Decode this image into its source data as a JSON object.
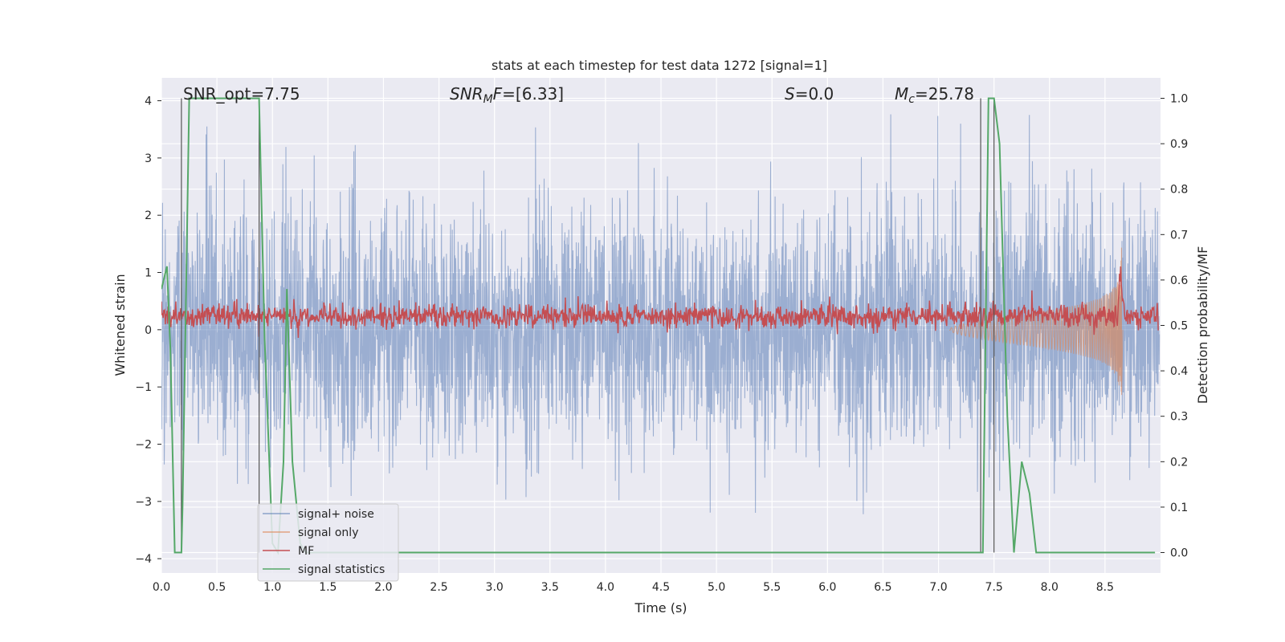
{
  "chart_data": {
    "type": "line",
    "title": "stats at each timestep for test data 1272 [signal=1]",
    "xlabel": "Time (s)",
    "ylabel": "Whitened strain",
    "ylabel_right": "Detection probability/MF",
    "xlim": [
      0.0,
      9.0
    ],
    "ylim": [
      -4.25,
      4.4
    ],
    "ylim_right": [
      -0.045,
      1.045
    ],
    "x_ticks": [
      "0.0",
      "0.5",
      "1.0",
      "1.5",
      "2.0",
      "2.5",
      "3.0",
      "3.5",
      "4.0",
      "4.5",
      "5.0",
      "5.5",
      "6.0",
      "6.5",
      "7.0",
      "7.5",
      "8.0",
      "8.5"
    ],
    "y_ticks": [
      "4",
      "3",
      "2",
      "1",
      "0",
      "−1",
      "−2",
      "−3",
      "−4"
    ],
    "y_ticks_right": [
      "1.0",
      "0.9",
      "0.8",
      "0.7",
      "0.6",
      "0.5",
      "0.4",
      "0.3",
      "0.2",
      "0.1",
      "0.0"
    ],
    "grid": true,
    "legend_position": "lower-left",
    "annotations": [
      {
        "name": "snr-opt",
        "text": "SNR_opt=7.75"
      },
      {
        "name": "snr-mf",
        "text": "SNR_M F=[6.33]"
      },
      {
        "name": "s-value",
        "text": "S=0.0"
      },
      {
        "name": "chirp-mass",
        "text": "M_c=25.78"
      }
    ],
    "vertical_markers_x": [
      0.18,
      0.88,
      7.38,
      7.5
    ],
    "series": [
      {
        "name": "signal+ noise",
        "color": "#4c72b0",
        "description_key": "noise"
      },
      {
        "name": "signal only",
        "color": "#dd8452",
        "description_key": "chirp",
        "t_end": 8.65,
        "peak_amplitude": 1.6
      },
      {
        "name": "MF",
        "color": "#c44e52",
        "axis": "right",
        "mean_level": 0.52
      },
      {
        "name": "signal statistics",
        "color": "#55a868",
        "axis": "right",
        "x": [
          0.0,
          0.05,
          0.08,
          0.12,
          0.18,
          0.19,
          0.25,
          0.3,
          0.85,
          0.88,
          0.93,
          1.0,
          1.05,
          1.1,
          1.13,
          1.18,
          1.25,
          1.3,
          7.38,
          7.4,
          7.45,
          7.5,
          7.55,
          7.62,
          7.68,
          7.75,
          7.82,
          7.88,
          8.95
        ],
        "y": [
          0.58,
          0.63,
          0.45,
          0.0,
          0.0,
          0.1,
          1.0,
          1.0,
          1.0,
          1.0,
          0.47,
          0.02,
          0.0,
          0.2,
          0.58,
          0.2,
          0.02,
          0.0,
          0.0,
          0.0,
          1.0,
          1.0,
          0.9,
          0.3,
          0.0,
          0.2,
          0.13,
          0.0,
          0.0
        ]
      }
    ]
  }
}
